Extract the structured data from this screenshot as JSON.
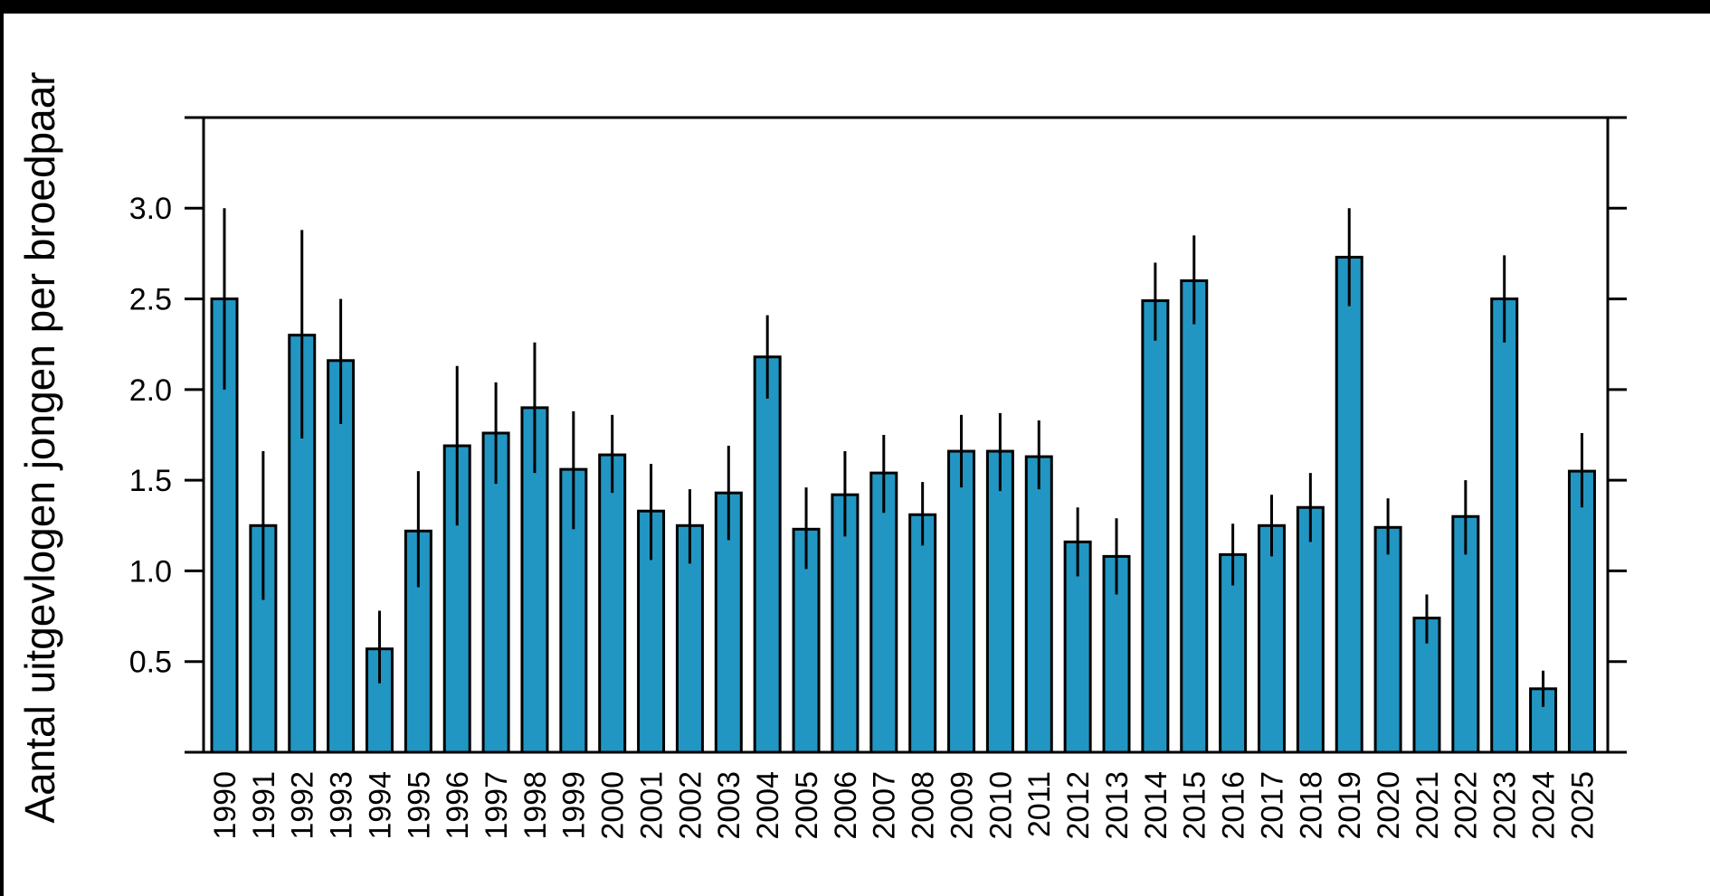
{
  "figure": {
    "background_color": "#ffffff",
    "top_strip_color": "#000000",
    "left_strip_color": "#000000"
  },
  "chart_data": {
    "type": "bar",
    "title": "",
    "xlabel": "",
    "ylabel": "Aantal uitgevlogen jongen per broedpaar",
    "categories": [
      "1990",
      "1991",
      "1992",
      "1993",
      "1994",
      "1995",
      "1996",
      "1997",
      "1998",
      "1999",
      "2000",
      "2001",
      "2002",
      "2003",
      "2004",
      "2005",
      "2006",
      "2007",
      "2008",
      "2009",
      "2010",
      "2011",
      "2012",
      "2013",
      "2014",
      "2015",
      "2016",
      "2017",
      "2018",
      "2019",
      "2020",
      "2021",
      "2022",
      "2023",
      "2024",
      "2025"
    ],
    "values": [
      2.5,
      1.25,
      2.3,
      2.16,
      0.57,
      1.22,
      1.69,
      1.76,
      1.9,
      1.56,
      1.64,
      1.33,
      1.25,
      1.43,
      2.18,
      1.23,
      1.42,
      1.54,
      1.31,
      1.66,
      1.66,
      1.63,
      1.16,
      1.08,
      2.49,
      2.6,
      1.09,
      1.25,
      1.35,
      2.73,
      1.24,
      0.74,
      1.3,
      2.5,
      0.35,
      1.55
    ],
    "error_low": [
      2.0,
      0.84,
      1.73,
      1.81,
      0.38,
      0.91,
      1.25,
      1.48,
      1.54,
      1.23,
      1.43,
      1.06,
      1.04,
      1.17,
      1.95,
      1.01,
      1.19,
      1.32,
      1.14,
      1.46,
      1.44,
      1.45,
      0.97,
      0.87,
      2.27,
      2.36,
      0.92,
      1.08,
      1.16,
      2.46,
      1.09,
      0.6,
      1.09,
      2.26,
      0.25,
      1.35
    ],
    "error_high": [
      3.0,
      1.66,
      2.88,
      2.5,
      0.78,
      1.55,
      2.13,
      2.04,
      2.26,
      1.88,
      1.86,
      1.59,
      1.45,
      1.69,
      2.41,
      1.46,
      1.66,
      1.75,
      1.49,
      1.86,
      1.87,
      1.83,
      1.35,
      1.29,
      2.7,
      2.85,
      1.26,
      1.42,
      1.54,
      3.0,
      1.4,
      0.87,
      1.5,
      2.74,
      0.45,
      1.76
    ],
    "ylim": [
      0,
      3.5
    ],
    "ytick_step": 0.5,
    "ytick_labels": [
      "0.5",
      "1.0",
      "1.5",
      "2.0",
      "2.5",
      "3.0"
    ],
    "grid": false,
    "legend_position": "none",
    "bar_color": "#2296C2",
    "bar_edge_color": "#000000",
    "errorbar_color": "#000000",
    "axis_color": "#000000"
  }
}
